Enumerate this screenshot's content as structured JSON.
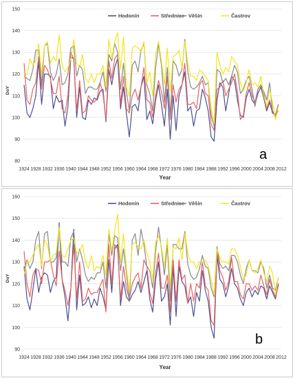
{
  "chart_data": [
    {
      "type": "line",
      "panel_label": "a",
      "xlabel": "Year",
      "ylabel": "DoY",
      "ylim": [
        80,
        150
      ],
      "yticks": [
        80,
        90,
        100,
        110,
        120,
        130,
        140,
        150
      ],
      "xlim": [
        1924,
        2012
      ],
      "xticks": [
        1924,
        1928,
        1932,
        1936,
        1940,
        1944,
        1948,
        1952,
        1956,
        1960,
        1964,
        1968,
        1972,
        1976,
        1980,
        1984,
        1988,
        1992,
        1996,
        2000,
        2004,
        2008,
        2012
      ],
      "grid": true,
      "legend_position": "top",
      "x": [
        1924,
        1925,
        1926,
        1927,
        1928,
        1929,
        1930,
        1931,
        1932,
        1933,
        1934,
        1935,
        1936,
        1937,
        1938,
        1939,
        1940,
        1941,
        1942,
        1943,
        1944,
        1945,
        1946,
        1947,
        1948,
        1949,
        1950,
        1951,
        1952,
        1953,
        1954,
        1955,
        1956,
        1957,
        1958,
        1959,
        1960,
        1961,
        1962,
        1963,
        1964,
        1965,
        1966,
        1967,
        1968,
        1969,
        1970,
        1971,
        1972,
        1973,
        1974,
        1975,
        1976,
        1977,
        1978,
        1979,
        1980,
        1981,
        1982,
        1983,
        1984,
        1985,
        1986,
        1987,
        1988,
        1989,
        1990,
        1991,
        1992,
        1993,
        1994,
        1995,
        1996,
        1997,
        1998,
        1999,
        2000,
        2001,
        2002,
        2003,
        2004,
        2005,
        2006,
        2007,
        2008,
        2009,
        2010,
        2011
      ],
      "series": [
        {
          "name": "Hodonín",
          "color": "#4b4f8c",
          "values": [
            115,
            102,
            100,
            104,
            110,
            126,
            106,
            120,
            120,
            119,
            104,
            110,
            107,
            108,
            96,
            105,
            128,
            127,
            100,
            114,
            100,
            99,
            108,
            106,
            109,
            108,
            112,
            113,
            98,
            122,
            115,
            123,
            127,
            104,
            114,
            102,
            91,
            105,
            106,
            103,
            114,
            119,
            99,
            103,
            97,
            108,
            115,
            106,
            96,
            113,
            90,
            110,
            94,
            110,
            115,
            121,
            103,
            105,
            96,
            103,
            104,
            113,
            109,
            103,
            91,
            89,
            108,
            116,
            114,
            103,
            111,
            119,
            117,
            108,
            101,
            100,
            109,
            113,
            108,
            106,
            111,
            114,
            109,
            103,
            107,
            102,
            101,
            106
          ]
        },
        {
          "name": "Střednice",
          "color": "#e8605f",
          "values": [
            125,
            108,
            106,
            113,
            116,
            128,
            113,
            124,
            122,
            118,
            111,
            111,
            119,
            104,
            102,
            110,
            130,
            127,
            103,
            117,
            102,
            103,
            110,
            108,
            107,
            109,
            116,
            111,
            99,
            126,
            118,
            127,
            129,
            106,
            119,
            104,
            102,
            110,
            113,
            108,
            114,
            123,
            108,
            107,
            100,
            110,
            117,
            112,
            104,
            119,
            99,
            115,
            107,
            113,
            115,
            125,
            106,
            106,
            107,
            104,
            115,
            117,
            111,
            110,
            97,
            94,
            113,
            114,
            117,
            110,
            113,
            116,
            120,
            112,
            99,
            101,
            111,
            116,
            110,
            107,
            113,
            115,
            111,
            104,
            108,
            103,
            100,
            106
          ]
        },
        {
          "name": "Věšín",
          "color": "#888888",
          "values": [
            119,
            118,
            117,
            122,
            131,
            131,
            115,
            133,
            134,
            121,
            117,
            120,
            127,
            115,
            116,
            120,
            132,
            133,
            119,
            124,
            122,
            111,
            114,
            114,
            113,
            113,
            116,
            121,
            112,
            129,
            126,
            134,
            130,
            113,
            125,
            112,
            103,
            124,
            126,
            121,
            131,
            134,
            115,
            111,
            103,
            123,
            134,
            124,
            107,
            123,
            101,
            126,
            124,
            119,
            122,
            136,
            121,
            114,
            113,
            114,
            116,
            119,
            115,
            116,
            101,
            96,
            122,
            121,
            116,
            118,
            115,
            119,
            124,
            121,
            111,
            113,
            117,
            119,
            113,
            105,
            113,
            115,
            112,
            108,
            116,
            103,
            101,
            103
          ]
        },
        {
          "name": "Častrov",
          "color": "#f2e61a",
          "values": [
            118,
            120,
            127,
            124,
            126,
            134,
            120,
            133,
            135,
            125,
            128,
            126,
            138,
            124,
            121,
            123,
            127,
            136,
            125,
            123,
            129,
            118,
            116,
            120,
            116,
            120,
            120,
            124,
            114,
            136,
            127,
            135,
            139,
            122,
            137,
            114,
            110,
            132,
            133,
            132,
            130,
            135,
            116,
            121,
            110,
            129,
            135,
            126,
            115,
            132,
            112,
            128,
            129,
            131,
            123,
            135,
            125,
            119,
            119,
            117,
            122,
            121,
            119,
            117,
            104,
            97,
            130,
            124,
            120,
            123,
            121,
            128,
            126,
            124,
            116,
            112,
            116,
            122,
            115,
            116,
            114,
            119,
            110,
            105,
            113,
            107,
            99,
            105
          ]
        }
      ]
    },
    {
      "type": "line",
      "panel_label": "b",
      "xlabel": "Year",
      "ylabel": "DoY",
      "ylim": [
        90,
        160
      ],
      "yticks": [
        90,
        100,
        110,
        120,
        130,
        140,
        150,
        160
      ],
      "xlim": [
        1924,
        2012
      ],
      "xticks": [
        1924,
        1928,
        1932,
        1936,
        1940,
        1944,
        1948,
        1952,
        1956,
        1960,
        1964,
        1968,
        1972,
        1976,
        1980,
        1984,
        1988,
        1992,
        1996,
        2000,
        2004,
        2008,
        2012
      ],
      "grid": true,
      "legend_position": "top",
      "x": [
        1924,
        1925,
        1926,
        1927,
        1928,
        1929,
        1930,
        1931,
        1932,
        1933,
        1934,
        1935,
        1936,
        1937,
        1938,
        1939,
        1940,
        1941,
        1942,
        1943,
        1944,
        1945,
        1946,
        1947,
        1948,
        1949,
        1950,
        1951,
        1952,
        1953,
        1954,
        1955,
        1956,
        1957,
        1958,
        1959,
        1960,
        1961,
        1962,
        1963,
        1964,
        1965,
        1966,
        1967,
        1968,
        1969,
        1970,
        1971,
        1972,
        1973,
        1974,
        1975,
        1976,
        1977,
        1978,
        1979,
        1980,
        1981,
        1982,
        1983,
        1984,
        1985,
        1986,
        1987,
        1988,
        1989,
        1990,
        1991,
        1992,
        1993,
        1994,
        1995,
        1996,
        1997,
        1998,
        1999,
        2000,
        2001,
        2002,
        2003,
        2004,
        2005,
        2006,
        2007,
        2008,
        2009,
        2010,
        2011
      ],
      "series": [
        {
          "name": "Hodonín",
          "color": "#4b4f8c",
          "values": [
            128,
            113,
            108,
            117,
            127,
            116,
            123,
            125,
            124,
            116,
            121,
            123,
            148,
            122,
            114,
            103,
            118,
            145,
            108,
            124,
            110,
            111,
            114,
            109,
            113,
            110,
            118,
            114,
            108,
            131,
            116,
            136,
            138,
            110,
            121,
            114,
            112,
            115,
            117,
            121,
            116,
            121,
            126,
            113,
            107,
            122,
            130,
            112,
            114,
            120,
            101,
            128,
            105,
            128,
            121,
            119,
            111,
            114,
            105,
            116,
            112,
            126,
            117,
            112,
            100,
            95,
            133,
            122,
            120,
            114,
            119,
            127,
            120,
            118,
            113,
            110,
            116,
            118,
            114,
            117,
            115,
            119,
            118,
            113,
            119,
            116,
            113,
            120
          ]
        },
        {
          "name": "Střednice",
          "color": "#e8605f",
          "values": [
            135,
            120,
            114,
            124,
            127,
            126,
            120,
            130,
            130,
            131,
            124,
            119,
            135,
            122,
            117,
            110,
            118,
            138,
            113,
            130,
            112,
            113,
            118,
            115,
            116,
            116,
            119,
            122,
            107,
            138,
            120,
            138,
            136,
            113,
            128,
            118,
            113,
            120,
            123,
            125,
            118,
            131,
            128,
            116,
            111,
            125,
            134,
            118,
            118,
            124,
            107,
            131,
            112,
            131,
            122,
            124,
            111,
            120,
            112,
            120,
            118,
            130,
            119,
            117,
            103,
            101,
            135,
            126,
            123,
            117,
            121,
            132,
            121,
            121,
            115,
            113,
            120,
            120,
            117,
            119,
            117,
            124,
            119,
            115,
            122,
            117,
            114,
            119
          ]
        },
        {
          "name": "Věšín",
          "color": "#888888",
          "values": [
            126,
            131,
            127,
            130,
            140,
            144,
            127,
            143,
            144,
            130,
            130,
            132,
            147,
            130,
            130,
            128,
            141,
            144,
            130,
            136,
            131,
            124,
            121,
            123,
            122,
            125,
            125,
            130,
            118,
            143,
            133,
            142,
            141,
            126,
            136,
            125,
            112,
            140,
            143,
            133,
            145,
            138,
            128,
            126,
            118,
            135,
            146,
            136,
            124,
            138,
            112,
            138,
            138,
            136,
            136,
            144,
            129,
            124,
            122,
            123,
            127,
            133,
            128,
            127,
            118,
            114,
            137,
            129,
            127,
            128,
            126,
            133,
            133,
            130,
            124,
            120,
            127,
            131,
            126,
            126,
            125,
            130,
            127,
            118,
            124,
            118,
            117,
            123
          ]
        },
        {
          "name": "Častrov",
          "color": "#f2e61a",
          "values": [
            124,
            130,
            130,
            133,
            136,
            138,
            128,
            140,
            138,
            130,
            133,
            134,
            146,
            133,
            132,
            136,
            140,
            141,
            134,
            135,
            138,
            130,
            127,
            133,
            126,
            128,
            127,
            133,
            124,
            145,
            135,
            144,
            152,
            130,
            143,
            127,
            117,
            138,
            139,
            137,
            136,
            140,
            134,
            130,
            122,
            139,
            142,
            137,
            128,
            141,
            119,
            137,
            136,
            141,
            131,
            143,
            134,
            130,
            130,
            127,
            130,
            130,
            131,
            128,
            122,
            115,
            136,
            132,
            130,
            130,
            129,
            136,
            136,
            133,
            128,
            122,
            124,
            131,
            126,
            125,
            127,
            131,
            125,
            121,
            128,
            125,
            115,
            123
          ]
        }
      ]
    }
  ]
}
